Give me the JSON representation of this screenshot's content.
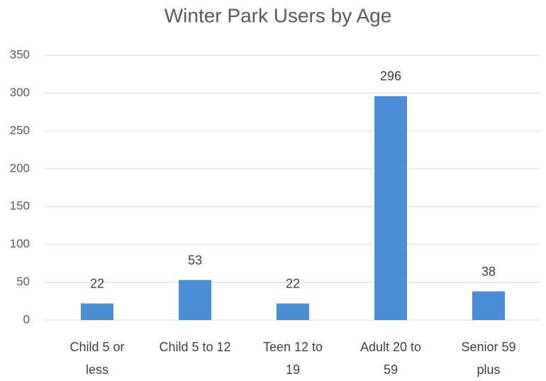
{
  "chart_data": {
    "type": "bar",
    "title": "Winter Park Users by Age",
    "categories": [
      "Child 5 or less",
      "Child 5 to 12",
      "Teen 12 to 19",
      "Adult 20 to 59",
      "Senior 59 plus"
    ],
    "values": [
      22,
      53,
      22,
      296,
      38
    ],
    "color": "#4a8fd6",
    "ylim": [
      0,
      350
    ],
    "yticks": [
      0,
      50,
      100,
      150,
      200,
      250,
      300,
      350
    ],
    "grid": true
  }
}
